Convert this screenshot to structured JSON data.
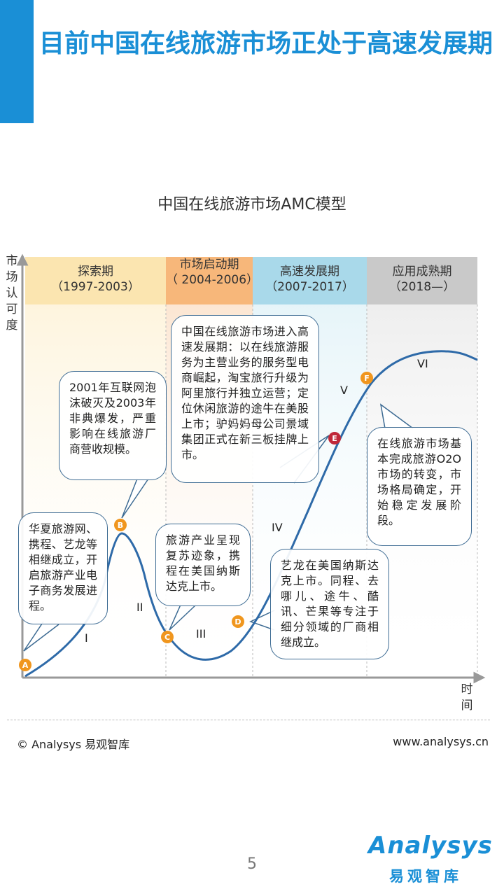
{
  "header": {
    "title": "目前中国在线旅游市场正处于高速发展期"
  },
  "diagram": {
    "subtitle": "中国在线旅游市场AMC模型",
    "y_axis_label": "市场认可度",
    "x_axis_label": "时间",
    "phases": [
      {
        "name": "探索期",
        "period": "（1997-2003）",
        "color": "#fbe5b0"
      },
      {
        "name": "市场启动期",
        "period": "（ 2004-2006）",
        "color": "#f7b77a"
      },
      {
        "name": "高速发展期",
        "period": "（2007-2017）",
        "color": "#a9d9ea"
      },
      {
        "name": "应用成熟期",
        "period": "（2018—）",
        "color": "#c9c9c9"
      }
    ],
    "stages": [
      "I",
      "II",
      "III",
      "IV",
      "V",
      "VI"
    ],
    "points": [
      "A",
      "B",
      "C",
      "D",
      "E",
      "F"
    ],
    "point_color": "#f0961e",
    "point_e_color": "#c0283a",
    "curve_color": "#2e6aa8",
    "notes": {
      "a": "华夏旅游网、携程、艺龙等相继成立，开启旅游产业电子商务发展进程。",
      "b": "2001年互联网泡沫破灭及2003年非典爆发，严重影响在线旅游厂商营收规模。",
      "c": "旅游产业呈现复苏迹象，携程在美国纳斯达克上市。",
      "d": "艺龙在美国纳斯达克上市。同程、去哪儿、途牛、酷讯、芒果等专注于细分领域的厂商相继成立。",
      "e": "中国在线旅游市场进入高速发展期：以在线旅游服务为主营业务的服务型电商崛起，淘宝旅行升级为阿里旅行并独立运营；定位休闲旅游的途牛在美股上市；驴妈妈母公司景域集团正式在新三板挂牌上市。",
      "f": "在线旅游市场基本完成旅游O2O市场的转变，市场格局确定，开始稳定发展阶段。"
    }
  },
  "footer": {
    "copyright": "© Analysys 易观智库",
    "website": "www.analysys.cn",
    "page_number": "5",
    "logo_word": "Analysys",
    "logo_cn": "易观智库"
  }
}
